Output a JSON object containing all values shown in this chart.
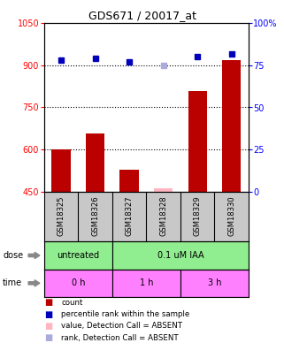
{
  "title": "GDS671 / 20017_at",
  "samples": [
    "GSM18325",
    "GSM18326",
    "GSM18327",
    "GSM18328",
    "GSM18329",
    "GSM18330"
  ],
  "bar_values": [
    600,
    658,
    527,
    462,
    808,
    920
  ],
  "bar_absent": [
    false,
    false,
    false,
    true,
    false,
    false
  ],
  "rank_values": [
    78,
    79,
    77,
    75,
    80,
    82
  ],
  "rank_absent": [
    false,
    false,
    false,
    true,
    false,
    false
  ],
  "ylim_left": [
    450,
    1050
  ],
  "ylim_right": [
    0,
    100
  ],
  "yticks_left": [
    450,
    600,
    750,
    900,
    1050
  ],
  "yticks_right": [
    0,
    25,
    50,
    75,
    100
  ],
  "ytick_labels_right": [
    "0",
    "25",
    "50",
    "75",
    "100%"
  ],
  "dose_labels": [
    {
      "text": "untreated",
      "span": [
        0,
        2
      ],
      "color": "#90EE90"
    },
    {
      "text": "0.1 uM IAA",
      "span": [
        2,
        6
      ],
      "color": "#90EE90"
    }
  ],
  "time_labels": [
    {
      "text": "0 h",
      "span": [
        0,
        2
      ],
      "color": "#FF80FF"
    },
    {
      "text": "1 h",
      "span": [
        2,
        4
      ],
      "color": "#FF80FF"
    },
    {
      "text": "3 h",
      "span": [
        4,
        6
      ],
      "color": "#FF80FF"
    }
  ],
  "bar_color": "#BB0000",
  "bar_absent_color": "#FFB6C1",
  "rank_color": "#0000BB",
  "rank_absent_color": "#AAAADD",
  "legend_items": [
    {
      "color": "#BB0000",
      "label": "count"
    },
    {
      "color": "#0000BB",
      "label": "percentile rank within the sample"
    },
    {
      "color": "#FFB6C1",
      "label": "value, Detection Call = ABSENT"
    },
    {
      "color": "#AAAADD",
      "label": "rank, Detection Call = ABSENT"
    }
  ],
  "dose_arrow_label": "dose",
  "time_arrow_label": "time",
  "grid_yticks": [
    600,
    750,
    900
  ],
  "fig_bg": "#f0f0f0"
}
